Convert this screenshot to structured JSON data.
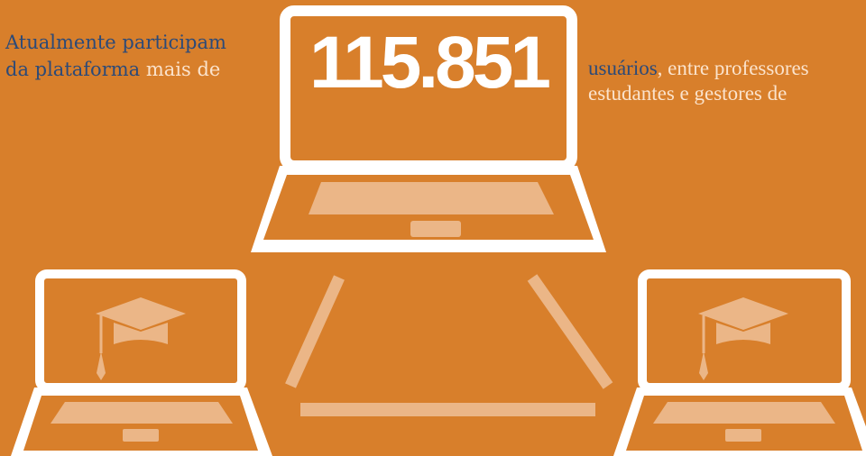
{
  "intro": {
    "line1": "Atualmente participam",
    "line2_highlight": "da plataforma",
    "line2_rest": "mais de"
  },
  "count": "115.851",
  "outro": {
    "line1_highlight": "usuários",
    "line1_rest": ", entre professores",
    "line2": "estudantes e gestores de"
  }
}
